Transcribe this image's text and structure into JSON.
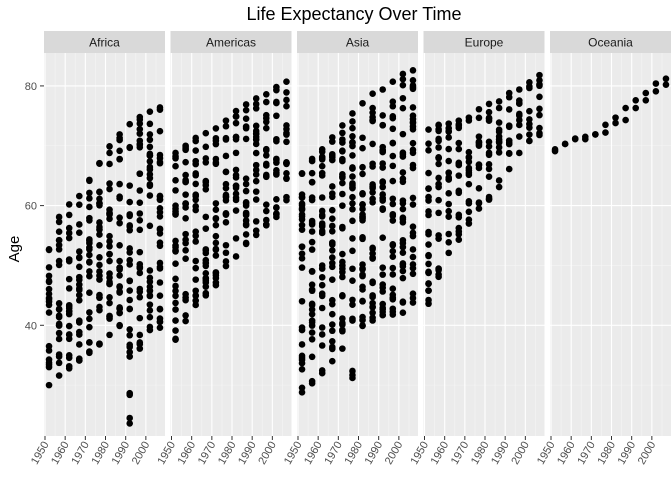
{
  "chart_data": {
    "type": "scatter",
    "title": "Life Expectancy Over Time",
    "xlabel": "",
    "ylabel": "Age",
    "xlim": [
      1949.5,
      2009.5
    ],
    "ylim": [
      21.5,
      85.5
    ],
    "x_ticks": [
      1950,
      1960,
      1970,
      1980,
      1990,
      2000
    ],
    "x_tick_labels": [
      "1950",
      "1960",
      "1970",
      "1980",
      "1990",
      "2000"
    ],
    "y_ticks": [
      40,
      60,
      80
    ],
    "y_tick_labels": [
      "40",
      "60",
      "80"
    ],
    "years": [
      1952,
      1957,
      1962,
      1967,
      1972,
      1977,
      1982,
      1987,
      1992,
      1997,
      2002,
      2007
    ],
    "facets": [
      {
        "name": "Africa",
        "ranges": [
          [
            30.0,
            52.7
          ],
          [
            31.6,
            58.1
          ],
          [
            32.8,
            60.2
          ],
          [
            34.1,
            61.6
          ],
          [
            35.4,
            64.3
          ],
          [
            36.8,
            67.1
          ],
          [
            38.4,
            69.9
          ],
          [
            39.9,
            71.9
          ],
          [
            23.6,
            73.6
          ],
          [
            36.1,
            74.8
          ],
          [
            39.2,
            75.7
          ],
          [
            39.6,
            76.4
          ]
        ]
      },
      {
        "name": "Americas",
        "ranges": [
          [
            37.6,
            68.8
          ],
          [
            40.7,
            70.0
          ],
          [
            43.4,
            71.3
          ],
          [
            45.0,
            72.1
          ],
          [
            46.7,
            72.9
          ],
          [
            49.9,
            74.2
          ],
          [
            51.5,
            75.8
          ],
          [
            53.6,
            76.9
          ],
          [
            55.1,
            77.9
          ],
          [
            56.7,
            78.6
          ],
          [
            58.1,
            79.8
          ],
          [
            60.9,
            80.7
          ]
        ]
      },
      {
        "name": "Asia",
        "ranges": [
          [
            28.8,
            65.4
          ],
          [
            30.3,
            67.8
          ],
          [
            32.0,
            69.4
          ],
          [
            34.0,
            71.4
          ],
          [
            36.1,
            73.4
          ],
          [
            31.2,
            75.4
          ],
          [
            39.9,
            77.1
          ],
          [
            40.8,
            78.7
          ],
          [
            41.7,
            79.4
          ],
          [
            41.8,
            80.7
          ],
          [
            42.1,
            82.0
          ],
          [
            43.8,
            82.6
          ]
        ]
      },
      {
        "name": "Europe",
        "ranges": [
          [
            43.6,
            72.7
          ],
          [
            48.1,
            73.5
          ],
          [
            52.1,
            73.7
          ],
          [
            54.3,
            74.2
          ],
          [
            57.0,
            74.7
          ],
          [
            59.5,
            76.1
          ],
          [
            61.0,
            76.99
          ],
          [
            63.1,
            77.4
          ],
          [
            66.1,
            78.8
          ],
          [
            68.8,
            79.4
          ],
          [
            70.8,
            80.6
          ],
          [
            71.8,
            81.8
          ]
        ]
      },
      {
        "name": "Oceania",
        "points": [
          [
            69.1,
            69.4
          ],
          [
            70.3,
            70.3
          ],
          [
            71.1,
            71.2
          ],
          [
            71.1,
            71.5
          ],
          [
            71.9,
            71.9
          ],
          [
            72.2,
            73.5
          ],
          [
            73.8,
            74.7
          ],
          [
            74.3,
            76.3
          ],
          [
            76.3,
            77.6
          ],
          [
            77.6,
            78.8
          ],
          [
            79.1,
            80.4
          ],
          [
            80.2,
            81.2
          ]
        ]
      }
    ]
  }
}
